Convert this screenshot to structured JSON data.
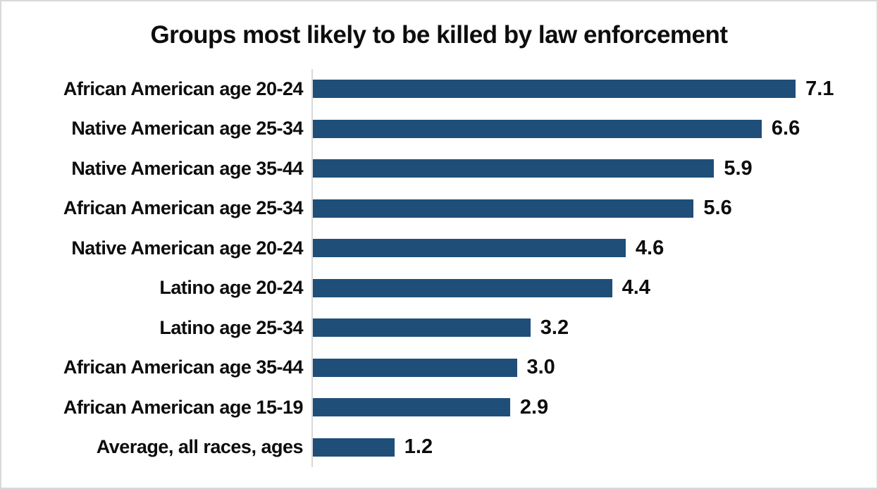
{
  "chart_data": {
    "type": "bar",
    "orientation": "horizontal",
    "title": "Groups most likely to be killed by law enforcement",
    "categories": [
      "African American age 20-24",
      "Native American age 25-34",
      "Native American age 35-44",
      "African American age 25-34",
      "Native American age 20-24",
      "Latino age 20-24",
      "Latino age 25-34",
      "African American age 35-44",
      "African American age 15-19",
      "Average, all races, ages"
    ],
    "values": [
      7.1,
      6.6,
      5.9,
      5.6,
      4.6,
      4.4,
      3.2,
      3.0,
      2.9,
      1.2
    ],
    "value_labels": [
      "7.1",
      "6.6",
      "5.9",
      "5.6",
      "4.6",
      "4.4",
      "3.2",
      "3.0",
      "2.9",
      "1.2"
    ],
    "xlim": [
      0,
      8.3
    ],
    "grid": false,
    "legend": null,
    "data_labels_position": "outside-end",
    "colors": {
      "bar": "#1f4e79",
      "axis_line": "#d9d9d9",
      "frame_border": "#d9d9d9",
      "text": "#0d0d0d",
      "background": "#ffffff"
    }
  }
}
